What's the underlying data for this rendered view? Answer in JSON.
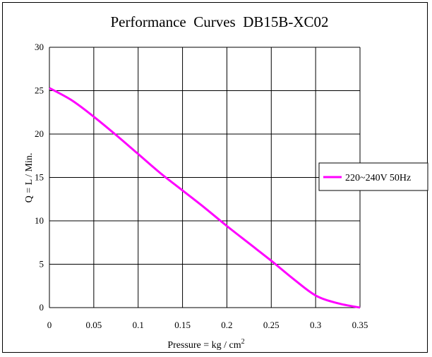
{
  "chart_data": {
    "type": "line",
    "title": "Performance  Curves  DB15B-XC02",
    "xlabel": "Pressure = kg / cm",
    "xlabel_sup": "2",
    "ylabel": "Q = L / Min.",
    "xlim": [
      0,
      0.35
    ],
    "ylim": [
      0,
      30
    ],
    "xticks": [
      0,
      0.05,
      0.1,
      0.15,
      0.2,
      0.25,
      0.3,
      0.35
    ],
    "xtick_labels": [
      "0",
      "0.05",
      "0.1",
      "0.15",
      "0.2",
      "0.25",
      "0.3",
      "0.35"
    ],
    "yticks": [
      0,
      5,
      10,
      15,
      20,
      25,
      30
    ],
    "ytick_labels": [
      "0",
      "5",
      "10",
      "15",
      "20",
      "25",
      "30"
    ],
    "grid": true,
    "legend_position": "right",
    "series": [
      {
        "name": "220~240V 50Hz",
        "color": "#ff00ff",
        "x": [
          0,
          0.025,
          0.05,
          0.075,
          0.1,
          0.125,
          0.15,
          0.175,
          0.2,
          0.225,
          0.25,
          0.275,
          0.3,
          0.325,
          0.35
        ],
        "y": [
          25.3,
          23.9,
          22.0,
          19.9,
          17.7,
          15.5,
          13.5,
          11.5,
          9.4,
          7.4,
          5.4,
          3.3,
          1.4,
          0.5,
          0
        ]
      }
    ]
  }
}
